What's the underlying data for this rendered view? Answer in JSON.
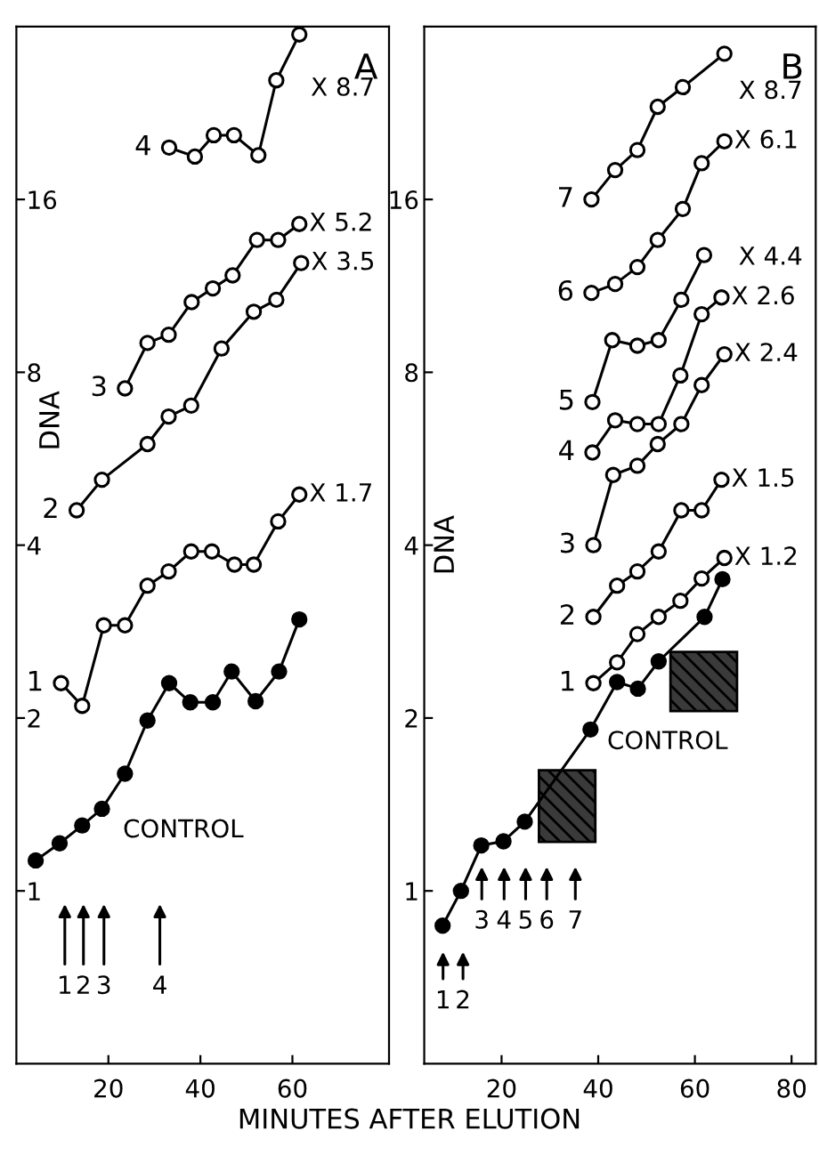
{
  "chart_data": [
    {
      "type": "line",
      "xlabel": "MINUTES AFTER ELUTION",
      "ylabel": "DNA",
      "log": "y",
      "grid": false,
      "line_style": "solid",
      "xlim": [
        0,
        81
      ],
      "xticks": [
        20,
        40,
        60
      ],
      "ylim": [
        0.5,
        32
      ],
      "yticks": [
        1,
        2,
        4,
        8,
        16
      ],
      "series": [
        {
          "color": "#000000",
          "marker": "open circle",
          "x": [
            33.2,
            38.8,
            42.9,
            47.3,
            52.6,
            56.5,
            61.5
          ],
          "values": [
            19.7,
            19.0,
            20.7,
            20.7,
            19.1,
            25.8,
            31.0
          ]
        },
        {
          "color": "#000000",
          "marker": "open circle",
          "x": [
            23.6,
            28.5,
            33.1,
            38.1,
            42.7,
            47.0,
            52.3,
            56.9,
            61.5
          ],
          "values": [
            7.5,
            9.0,
            9.3,
            10.6,
            11.2,
            11.8,
            13.6,
            13.6,
            14.5
          ]
        },
        {
          "color": "#000000",
          "marker": "open circle",
          "x": [
            13.1,
            18.6,
            28.5,
            33.1,
            38.0,
            44.6,
            51.6,
            56.5,
            61.9
          ],
          "values": [
            4.6,
            5.2,
            6.0,
            6.7,
            7.0,
            8.8,
            10.2,
            10.7,
            12.4
          ]
        },
        {
          "color": "#000000",
          "marker": "open circle",
          "x": [
            9.7,
            14.3,
            19.0,
            23.6,
            28.5,
            33.1,
            38.0,
            42.5,
            47.4,
            51.6,
            56.9,
            61.5
          ],
          "values": [
            2.3,
            2.1,
            2.9,
            2.9,
            3.4,
            3.6,
            3.9,
            3.9,
            3.7,
            3.7,
            4.4,
            4.9
          ]
        },
        {
          "color": "#000000",
          "marker": "circle",
          "x": [
            4.2,
            9.4,
            14.3,
            18.6,
            23.6,
            28.5,
            33.2,
            37.8,
            42.7,
            46.8,
            52.0,
            57.1,
            61.5
          ],
          "values": [
            1.13,
            1.21,
            1.3,
            1.39,
            1.6,
            1.98,
            2.3,
            2.13,
            2.13,
            2.41,
            2.14,
            2.41,
            2.97
          ]
        }
      ],
      "annotations": [
        "A",
        "X 8.7",
        {
          "text": "X 5.2",
          "x": 61.5,
          "y": 14.5
        },
        {
          "text": "X 3.5",
          "x": 61.9,
          "y": 12.4
        },
        {
          "text": "X 1.7",
          "x": 61.5,
          "y": 4.9
        },
        {
          "text": "CONTROL",
          "x": 21,
          "y": 1.39
        },
        "1",
        "2",
        "3",
        "4",
        {
          "text": "4",
          "x": 33.2,
          "y": 19.7
        },
        {
          "text": "3",
          "x": 23.6,
          "y": 7.5
        },
        {
          "text": "2",
          "x": 13.1,
          "y": 4.6
        },
        {
          "text": "1",
          "x": 9.7,
          "y": 2.3
        }
      ]
    },
    {
      "type": "line",
      "ylabel": "DNA",
      "log": "y",
      "grid": false,
      "line_style": "solid",
      "xlim": [
        4,
        85
      ],
      "xticks": [
        20,
        40,
        60,
        80
      ],
      "ylim": [
        0.5,
        32
      ],
      "yticks": [
        1,
        2,
        4,
        8,
        16
      ],
      "series": [
        {
          "color": "#000000",
          "marker": "open circle",
          "x": [
            38.6,
            43.5,
            48.1,
            52.3,
            57.5,
            66.1
          ],
          "values": [
            16.0,
            18.0,
            19.5,
            23.2,
            25.1,
            28.7
          ]
        },
        {
          "color": "#000000",
          "marker": "open circle",
          "x": [
            38.6,
            43.5,
            48.1,
            52.3,
            57.5,
            61.4,
            66.1
          ],
          "values": [
            11.0,
            11.4,
            12.2,
            13.6,
            15.4,
            18.5,
            20.2
          ]
        },
        {
          "color": "#000000",
          "marker": "open circle",
          "x": [
            38.8,
            42.9,
            48.1,
            52.5,
            57.2,
            61.9
          ],
          "values": [
            7.1,
            9.1,
            8.9,
            9.1,
            10.7,
            12.8
          ]
        },
        {
          "color": "#000000",
          "marker": "open circle",
          "x": [
            38.8,
            43.5,
            48.1,
            52.5,
            57.0,
            61.4,
            65.5
          ],
          "values": [
            5.8,
            6.6,
            6.5,
            6.5,
            7.9,
            10.1,
            10.8
          ]
        },
        {
          "color": "#000000",
          "marker": "open circle",
          "x": [
            39.0,
            43.1,
            48.1,
            52.3,
            57.2,
            61.4,
            66.1
          ],
          "values": [
            4.0,
            5.3,
            5.5,
            6.0,
            6.5,
            7.6,
            8.6
          ]
        },
        {
          "color": "#000000",
          "marker": "open circle",
          "x": [
            39.0,
            43.9,
            48.1,
            52.5,
            57.2,
            61.4,
            65.5
          ],
          "values": [
            3.0,
            3.4,
            3.6,
            3.9,
            4.6,
            4.6,
            5.2
          ]
        },
        {
          "color": "#000000",
          "marker": "open circle",
          "x": [
            39.0,
            43.9,
            48.1,
            52.5,
            57.0,
            61.4,
            66.1
          ],
          "values": [
            2.3,
            2.5,
            2.8,
            3.0,
            3.2,
            3.5,
            3.8
          ]
        },
        {
          "color": "#000000",
          "marker": "circle",
          "x": [
            7.8,
            11.6,
            15.8,
            20.4,
            24.8,
            38.4,
            43.9,
            48.2,
            52.5,
            62.0,
            65.7
          ],
          "values": [
            0.87,
            1.0,
            1.2,
            1.22,
            1.32,
            1.91,
            2.31,
            2.25,
            2.51,
            3.0,
            3.49
          ]
        }
      ],
      "annotations": [
        "B",
        "X 8.7",
        {
          "text": "X 6.1",
          "x": 66.1,
          "y": 20.2
        },
        "X 4.4",
        {
          "text": "X 2.6",
          "x": 65.5,
          "y": 10.8
        },
        {
          "text": "X 2.4",
          "x": 66.1,
          "y": 8.6
        },
        {
          "text": "X 1.5",
          "x": 65.5,
          "y": 5.2
        },
        {
          "text": "X 1.2",
          "x": 66.1,
          "y": 3.8
        },
        "CONTROL",
        "1",
        "2",
        "3",
        "4",
        "5",
        "6",
        "7",
        {
          "text": "7",
          "x": 38.6,
          "y": 16.0
        },
        {
          "text": "6",
          "x": 38.6,
          "y": 11.0
        },
        {
          "text": "5",
          "x": 38.8,
          "y": 7.1
        },
        {
          "text": "4",
          "x": 38.8,
          "y": 5.8
        },
        {
          "text": "3",
          "x": 39.0,
          "y": 4.0
        },
        {
          "text": "2",
          "x": 39.0,
          "y": 3.0
        },
        {
          "text": "1",
          "x": 39.0,
          "y": 2.3
        }
      ]
    }
  ]
}
